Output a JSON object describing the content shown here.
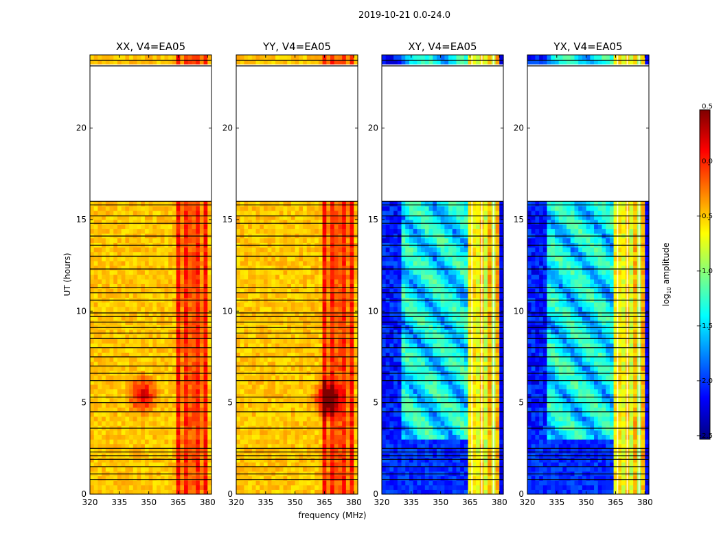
{
  "figure": {
    "suptitle": "2019-10-21 0.0-24.0",
    "xlabel": "frequency (MHz)",
    "ylabel": "UT (hours)"
  },
  "chart_data": {
    "type": "heatmap",
    "x_ticks": [
      320,
      335,
      350,
      365,
      380
    ],
    "x_tick_labels": [
      "320",
      "335",
      "350",
      "365",
      "380"
    ],
    "xlim": [
      320,
      382
    ],
    "y_ticks": [
      0,
      5,
      10,
      15,
      20
    ],
    "y_tick_labels": [
      "0",
      "5",
      "10",
      "15",
      "20"
    ],
    "ylim": [
      0,
      24
    ],
    "data_gap_hours": [
      16.0,
      23.3
    ],
    "flag_line_hours": [
      0.8,
      1.1,
      1.5,
      1.9,
      2.1,
      2.3,
      2.5,
      3.6,
      4.5,
      5.0,
      5.3,
      6.2,
      6.6,
      7.0,
      7.5,
      8.0,
      8.5,
      8.8,
      9.1,
      9.4,
      9.7,
      9.9,
      10.6,
      11.0,
      11.3,
      12.3,
      13.0,
      13.6,
      14.1,
      14.8,
      15.2,
      15.8,
      16.0,
      23.4,
      23.7
    ],
    "panels": [
      {
        "title": "XX, V4=EA05",
        "style": "parallel",
        "hotspots": [
          {
            "freq": 346,
            "ut": 5.3,
            "level": 0.25
          }
        ]
      },
      {
        "title": "YY, V4=EA05",
        "style": "parallel",
        "hotspots": [
          {
            "freq": 366,
            "ut": 5.1,
            "level": 0.35
          }
        ]
      },
      {
        "title": "XY, V4=EA05",
        "style": "cross",
        "hotspots": []
      },
      {
        "title": "YX, V4=EA05",
        "style": "cross",
        "hotspots": []
      }
    ],
    "colorbar": {
      "label": "log10 amplitude",
      "label_base": "log",
      "label_sub": "10",
      "label_rest": " amplitude",
      "range": [
        -2.5,
        0.5
      ],
      "ticks": [
        0.5,
        0.0,
        -0.5,
        -1.0,
        -1.5,
        -2.0,
        -2.5
      ],
      "tick_labels": [
        "0.5",
        "0.0",
        "−0.5",
        "−1.0",
        "−1.5",
        "−2.0",
        "−2.5"
      ],
      "colormap": "jet"
    }
  }
}
